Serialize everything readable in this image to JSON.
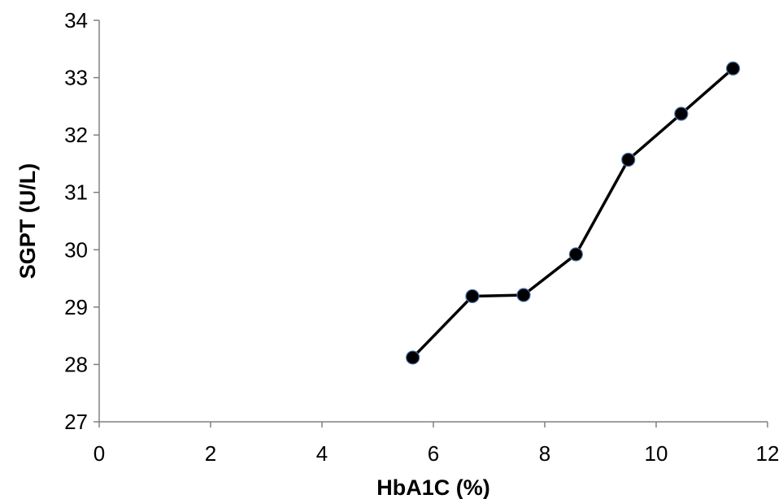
{
  "chart_data": {
    "type": "line",
    "title": "",
    "xlabel": "HbA1C (%)",
    "ylabel": "SGPT (U/L)",
    "xlim": [
      0,
      12
    ],
    "ylim": [
      27,
      34
    ],
    "xticks": [
      "0",
      "2",
      "4",
      "6",
      "8",
      "10",
      "12"
    ],
    "yticks": [
      "27",
      "28",
      "29",
      "30",
      "31",
      "32",
      "33",
      "34"
    ],
    "grid": false,
    "legend": "none",
    "colors": {
      "line": "#000000",
      "marker_fill": "#000000",
      "marker_edge": "#4a6fa5"
    },
    "series": [
      {
        "x": [
          5.63,
          6.7,
          7.62,
          8.56,
          9.5,
          10.45,
          11.38
        ],
        "y": [
          28.12,
          29.19,
          29.21,
          29.92,
          31.57,
          32.37,
          33.16
        ]
      }
    ]
  }
}
